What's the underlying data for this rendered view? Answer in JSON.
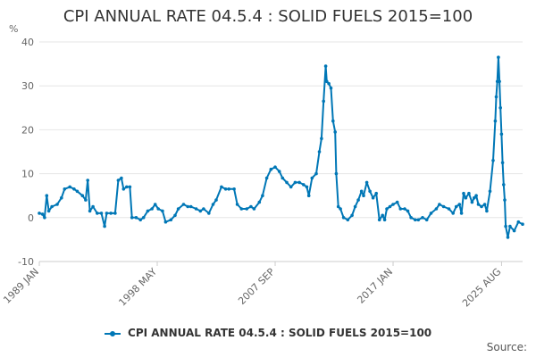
{
  "chart_data": {
    "type": "line",
    "title": "CPI ANNUAL RATE 04.5.4 : SOLID FUELS 2015=100",
    "unit_label": "%",
    "ylim": [
      -10,
      40
    ],
    "yticks": [
      -10,
      0,
      10,
      20,
      30,
      40
    ],
    "x_range": [
      "1989 JAN",
      "2025 AUG"
    ],
    "x_tick_labels": [
      "1989 JAN",
      "1998 MAY",
      "2007 SEP",
      "2017 JAN",
      "2025 AUG"
    ],
    "grid": true,
    "legend_position": "bottom",
    "series": [
      {
        "name": "CPI ANNUAL RATE 04.5.4 : SOLID FUELS 2015=100",
        "color": "#0077b6",
        "points": [
          [
            "1989-01",
            1.0
          ],
          [
            "1989-04",
            0.8
          ],
          [
            "1989-06",
            0.0
          ],
          [
            "1989-08",
            5.0
          ],
          [
            "1989-10",
            1.5
          ],
          [
            "1990-01",
            2.5
          ],
          [
            "1990-06",
            3.0
          ],
          [
            "1990-10",
            4.5
          ],
          [
            "1991-01",
            6.5
          ],
          [
            "1991-06",
            7.0
          ],
          [
            "1991-10",
            6.5
          ],
          [
            "1992-01",
            6.0
          ],
          [
            "1992-06",
            5.0
          ],
          [
            "1992-09",
            4.0
          ],
          [
            "1992-11",
            8.5
          ],
          [
            "1993-01",
            1.5
          ],
          [
            "1993-04",
            2.5
          ],
          [
            "1993-08",
            1.0
          ],
          [
            "1993-12",
            1.0
          ],
          [
            "1994-03",
            -2.0
          ],
          [
            "1994-05",
            1.0
          ],
          [
            "1994-09",
            1.0
          ],
          [
            "1995-01",
            1.0
          ],
          [
            "1995-04",
            8.5
          ],
          [
            "1995-07",
            9.0
          ],
          [
            "1995-09",
            6.5
          ],
          [
            "1995-12",
            7.0
          ],
          [
            "1996-03",
            7.0
          ],
          [
            "1996-05",
            0.0
          ],
          [
            "1996-09",
            0.0
          ],
          [
            "1997-01",
            -0.5
          ],
          [
            "1997-04",
            0.0
          ],
          [
            "1997-08",
            1.5
          ],
          [
            "1997-12",
            2.0
          ],
          [
            "1998-03",
            3.0
          ],
          [
            "1998-06",
            2.0
          ],
          [
            "1998-10",
            1.5
          ],
          [
            "1999-01",
            -1.0
          ],
          [
            "1999-06",
            -0.5
          ],
          [
            "1999-10",
            0.5
          ],
          [
            "2000-01",
            2.0
          ],
          [
            "2000-06",
            3.0
          ],
          [
            "2000-10",
            2.5
          ],
          [
            "2001-01",
            2.5
          ],
          [
            "2001-06",
            2.0
          ],
          [
            "2001-10",
            1.5
          ],
          [
            "2002-01",
            2.0
          ],
          [
            "2002-06",
            1.0
          ],
          [
            "2002-10",
            3.0
          ],
          [
            "2003-01",
            4.0
          ],
          [
            "2003-06",
            7.0
          ],
          [
            "2003-10",
            6.5
          ],
          [
            "2004-01",
            6.5
          ],
          [
            "2004-06",
            6.5
          ],
          [
            "2004-09",
            3.0
          ],
          [
            "2005-01",
            2.0
          ],
          [
            "2005-06",
            2.0
          ],
          [
            "2005-10",
            2.5
          ],
          [
            "2006-01",
            2.0
          ],
          [
            "2006-06",
            3.5
          ],
          [
            "2006-09",
            5.0
          ],
          [
            "2007-01",
            9.0
          ],
          [
            "2007-05",
            11.0
          ],
          [
            "2007-09",
            11.5
          ],
          [
            "2008-01",
            10.5
          ],
          [
            "2008-04",
            9.0
          ],
          [
            "2008-08",
            8.0
          ],
          [
            "2008-12",
            7.0
          ],
          [
            "2009-04",
            8.0
          ],
          [
            "2009-08",
            8.0
          ],
          [
            "2009-12",
            7.5
          ],
          [
            "2010-03",
            7.0
          ],
          [
            "2010-05",
            5.0
          ],
          [
            "2010-08",
            9.0
          ],
          [
            "2010-12",
            10.0
          ],
          [
            "2011-03",
            15.0
          ],
          [
            "2011-05",
            18.0
          ],
          [
            "2011-07",
            26.5
          ],
          [
            "2011-09",
            34.5
          ],
          [
            "2011-10",
            31.0
          ],
          [
            "2011-12",
            30.5
          ],
          [
            "2012-02",
            29.5
          ],
          [
            "2012-04",
            22.0
          ],
          [
            "2012-06",
            19.5
          ],
          [
            "2012-07",
            10.0
          ],
          [
            "2012-09",
            2.5
          ],
          [
            "2012-11",
            2.0
          ],
          [
            "2013-02",
            0.0
          ],
          [
            "2013-06",
            -0.5
          ],
          [
            "2013-10",
            0.5
          ],
          [
            "2014-01",
            2.5
          ],
          [
            "2014-04",
            4.0
          ],
          [
            "2014-07",
            6.0
          ],
          [
            "2014-09",
            5.0
          ],
          [
            "2014-12",
            8.0
          ],
          [
            "2015-03",
            6.0
          ],
          [
            "2015-06",
            4.5
          ],
          [
            "2015-09",
            5.5
          ],
          [
            "2015-12",
            -0.5
          ],
          [
            "2016-03",
            0.5
          ],
          [
            "2016-05",
            -0.5
          ],
          [
            "2016-07",
            2.0
          ],
          [
            "2016-10",
            2.5
          ],
          [
            "2017-01",
            3.0
          ],
          [
            "2017-05",
            3.5
          ],
          [
            "2017-08",
            2.0
          ],
          [
            "2017-12",
            2.0
          ],
          [
            "2018-03",
            1.5
          ],
          [
            "2018-06",
            0.0
          ],
          [
            "2018-10",
            -0.5
          ],
          [
            "2019-01",
            -0.5
          ],
          [
            "2019-05",
            0.0
          ],
          [
            "2019-09",
            -0.5
          ],
          [
            "2020-01",
            1.0
          ],
          [
            "2020-06",
            2.0
          ],
          [
            "2020-09",
            3.0
          ],
          [
            "2021-01",
            2.5
          ],
          [
            "2021-06",
            2.0
          ],
          [
            "2021-10",
            1.0
          ],
          [
            "2022-01",
            2.5
          ],
          [
            "2022-04",
            3.0
          ],
          [
            "2022-06",
            1.0
          ],
          [
            "2022-08",
            5.5
          ],
          [
            "2022-10",
            4.5
          ],
          [
            "2023-01",
            5.5
          ],
          [
            "2023-04",
            3.5
          ],
          [
            "2023-06",
            4.5
          ],
          [
            "2023-08",
            5.0
          ],
          [
            "2023-10",
            3.0
          ],
          [
            "2024-01",
            2.5
          ],
          [
            "2024-04",
            3.0
          ],
          [
            "2024-06",
            1.5
          ],
          [
            "2024-09",
            6.0
          ],
          [
            "2024-12",
            13.0
          ],
          [
            "2025-02",
            22.0
          ],
          [
            "2025-03",
            27.5
          ],
          [
            "2025-04",
            31.0
          ],
          [
            "2025-05",
            36.5
          ],
          [
            "2025-06",
            31.0
          ],
          [
            "2025-07",
            25.0
          ],
          [
            "2025-08",
            19.0
          ],
          [
            "2025-09",
            12.5
          ],
          [
            "2025-10",
            7.5
          ],
          [
            "2025-11",
            4.0
          ],
          [
            "2025-12",
            -2.0
          ],
          [
            "2026-02",
            -4.5
          ],
          [
            "2026-04",
            -2.0
          ],
          [
            "2026-08",
            -3.0
          ],
          [
            "2026-12",
            -1.0
          ],
          [
            "2027-04",
            -1.5
          ]
        ]
      }
    ]
  },
  "legend": {
    "label": "CPI ANNUAL RATE 04.5.4 : SOLID FUELS 2015=100"
  },
  "footer": {
    "source": "Source:"
  }
}
